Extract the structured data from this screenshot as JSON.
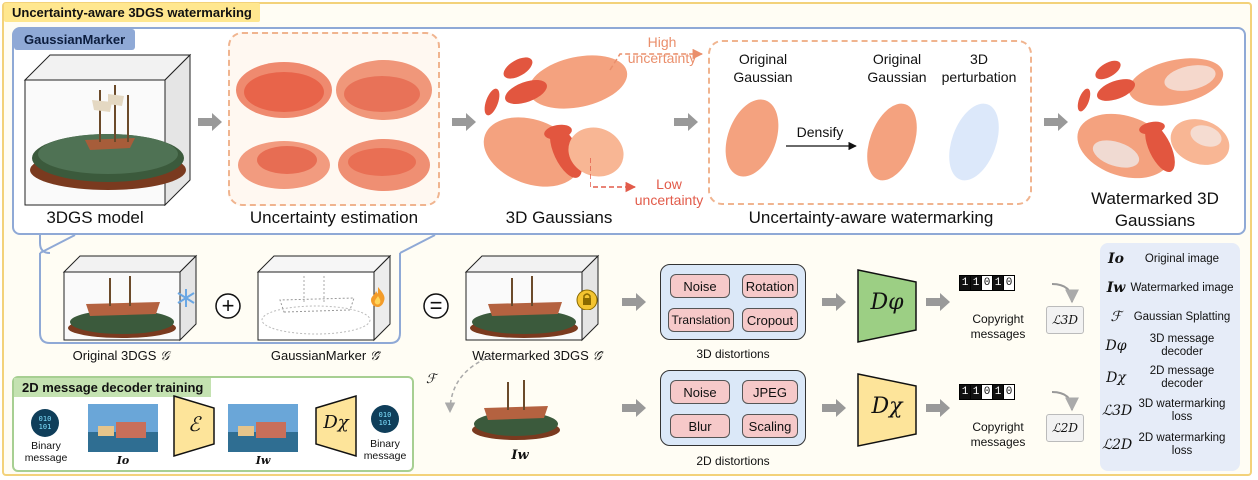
{
  "title": "Uncertainty-aware 3DGS watermarking",
  "gaussianmarker_section": {
    "tag": "GaussianMarker",
    "model_caption": "3DGS model",
    "uncertainty_caption": "Uncertainty estimation",
    "gaussians_caption": "3D Gaussians",
    "high_uncertainty": "High uncertainty",
    "low_uncertainty": "Low uncertainty",
    "original_gaussian_left": "Original Gaussian",
    "densify": "Densify",
    "original_gaussian_right": "Original Gaussian",
    "perturbation": "3D perturbation",
    "watermarking_caption": "Uncertainty-aware watermarking",
    "watermarked_caption": "Watermarked 3D Gaussians"
  },
  "composition": {
    "original_label": "Original 3DGS",
    "original_symbol": "𝒢",
    "marker_label": "GaussianMarker",
    "marker_symbol": "𝒢̃",
    "plus": "+",
    "equals": "=",
    "watermarked_label": "Watermarked 3DGS",
    "watermarked_symbol": "𝒢̂",
    "render_symbol": "ℱ",
    "rendered_image_symbol": "Iw"
  },
  "distortions_3d": {
    "items": [
      "Noise",
      "Rotation",
      "Translation",
      "Cropout"
    ],
    "caption": "3D distortions"
  },
  "distortions_2d": {
    "items": [
      "Noise",
      "JPEG",
      "Blur",
      "Scaling"
    ],
    "caption": "2D distortions"
  },
  "decoders": {
    "d3": "Dφ",
    "d2": "Dχ"
  },
  "copyright": {
    "bits": [
      "1",
      "1",
      "0",
      "1",
      "0"
    ],
    "label": "Copyright messages",
    "loss_3d": "ℒ3D",
    "loss_2d": "ℒ2D"
  },
  "training": {
    "tag": "2D message decoder training",
    "binary_message": "Binary message",
    "io": "Io",
    "encoder": "ℰ",
    "iw": "Iw",
    "decoder": "Dχ",
    "binary_message_out": "Binary message"
  },
  "legend": [
    {
      "symbol": "Io",
      "text": "Original image"
    },
    {
      "symbol": "Iw",
      "text": "Watermarked image"
    },
    {
      "symbol": "ℱ",
      "text": "Gaussian Splatting"
    },
    {
      "symbol": "Dφ",
      "text": "3D message decoder"
    },
    {
      "symbol": "Dχ",
      "text": "2D message decoder"
    },
    {
      "symbol": "ℒ3D",
      "text": "3D watermarking loss"
    },
    {
      "symbol": "ℒ2D",
      "text": "2D watermarking loss"
    }
  ],
  "colors": {
    "section_border": "#8fa9d6",
    "title_bg": "#ffe78f",
    "green_decoder": "#9ccf84",
    "yellow_decoder": "#fde49a",
    "gaussian_orange": "#f4a27f",
    "gaussian_red": "#e2563f",
    "perturbation_blue": "#dce8fa"
  }
}
